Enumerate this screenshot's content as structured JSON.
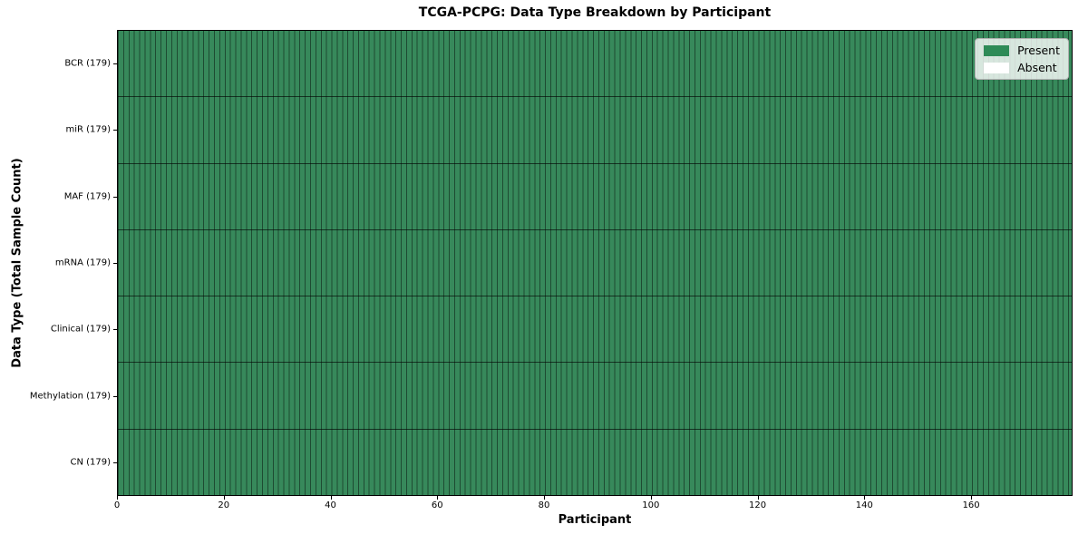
{
  "chart_data": {
    "type": "heatmap",
    "title": "TCGA-PCPG: Data Type Breakdown by Participant",
    "xlabel": "Participant",
    "ylabel": "Data Type (Total Sample Count)",
    "n_participants": 179,
    "xlim": [
      0,
      179
    ],
    "x_ticks": [
      0,
      20,
      40,
      60,
      80,
      100,
      120,
      140,
      160
    ],
    "grid": "cell-borders",
    "rows": [
      {
        "label": "BCR (179)",
        "data_type": "BCR",
        "total_samples": 179,
        "present_count": 179,
        "absent_count": 0
      },
      {
        "label": "miR (179)",
        "data_type": "miR",
        "total_samples": 179,
        "present_count": 179,
        "absent_count": 0
      },
      {
        "label": "MAF (179)",
        "data_type": "MAF",
        "total_samples": 179,
        "present_count": 179,
        "absent_count": 0
      },
      {
        "label": "mRNA (179)",
        "data_type": "mRNA",
        "total_samples": 179,
        "present_count": 179,
        "absent_count": 0
      },
      {
        "label": "Clinical (179)",
        "data_type": "Clinical",
        "total_samples": 179,
        "present_count": 179,
        "absent_count": 0
      },
      {
        "label": "Methylation (179)",
        "data_type": "Methylation",
        "total_samples": 179,
        "present_count": 179,
        "absent_count": 0
      },
      {
        "label": "CN (179)",
        "data_type": "CN",
        "total_samples": 179,
        "present_count": 179,
        "absent_count": 0
      }
    ],
    "legend": {
      "position": "upper right",
      "entries": [
        {
          "label": "Present",
          "color": "#2e8b57"
        },
        {
          "label": "Absent",
          "color": "#ffffff"
        }
      ]
    },
    "colors": {
      "present_fill": "#37895b",
      "absent_fill": "#ffffff",
      "cell_border": "rgba(0,0,0,0.45)",
      "row_divider": "rgba(0,0,0,0.62)",
      "axes_border": "#000000"
    }
  }
}
